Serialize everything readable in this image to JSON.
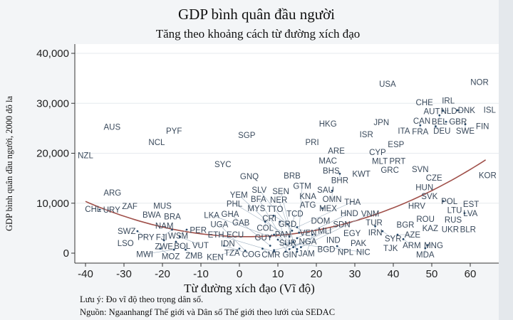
{
  "chart_data": {
    "type": "scatter",
    "title": "GDP bình quân đầu người",
    "subtitle": "Tăng theo khoảng cách từ đường xích đạo",
    "xlabel": "Từ đường xích đạo (Vĩ độ)",
    "ylabel": "GDP bình quân đầu người, 2000 đô la",
    "xlim": [
      -43,
      68
    ],
    "ylim": [
      -2000,
      42000
    ],
    "xticks": [
      -40,
      -30,
      -20,
      -10,
      0,
      10,
      20,
      30,
      40,
      50,
      60
    ],
    "yticks": [
      0,
      10000,
      20000,
      30000,
      40000
    ],
    "ytick_labels": [
      "0",
      "10,000",
      "20,000",
      "30,000",
      "40,000"
    ],
    "grid": true,
    "fit": {
      "type": "quadratic",
      "a": 4.0,
      "h": 2,
      "k": 3300,
      "xrange": [
        -40,
        64
      ],
      "color": "#a0504a"
    },
    "points": [
      {
        "label": "USA",
        "x": 38.5,
        "y": 33900
      },
      {
        "label": "NOR",
        "x": 62.4,
        "y": 34200
      },
      {
        "label": "CHE",
        "x": 48.1,
        "y": 30200
      },
      {
        "label": "IRL",
        "x": 54.3,
        "y": 30500
      },
      {
        "label": "AUT",
        "x": 48.9,
        "y": 29000
      },
      {
        "label": "NLD",
        "x": 52.9,
        "y": 28500
      },
      {
        "label": "DNK",
        "x": 56.7,
        "y": 28600
      },
      {
        "label": "ISL",
        "x": 65.6,
        "y": 29000
      },
      {
        "label": "CAN",
        "x": 47.4,
        "y": 27300
      },
      {
        "label": "BEL",
        "x": 52,
        "y": 27600
      },
      {
        "label": "GBR",
        "x": 53.7,
        "y": 26300
      },
      {
        "label": "FRA",
        "x": 47,
        "y": 25600
      },
      {
        "label": "DEU",
        "x": 51,
        "y": 25400
      },
      {
        "label": "SWE",
        "x": 58.7,
        "y": 25800
      },
      {
        "label": "FIN",
        "x": 62.4,
        "y": 25400
      },
      {
        "label": "ITA",
        "x": 43.3,
        "y": 24800
      },
      {
        "label": "JPN",
        "x": 36.9,
        "y": 26200
      },
      {
        "label": "ISR",
        "x": 33,
        "y": 23800
      },
      {
        "label": "HKG",
        "x": 23,
        "y": 25900
      },
      {
        "label": "PRI",
        "x": 18.9,
        "y": 22200
      },
      {
        "label": "ARE",
        "x": 25.2,
        "y": 20500
      },
      {
        "label": "MAC",
        "x": 23,
        "y": 18500
      },
      {
        "label": "BHS",
        "x": 23.3,
        "y": 16800
      },
      {
        "label": "BHR",
        "x": 26.1,
        "y": 15900
      },
      {
        "label": "KWT",
        "x": 30.9,
        "y": 15900
      },
      {
        "label": "ESP",
        "x": 40.7,
        "y": 21800
      },
      {
        "label": "CYP",
        "x": 35.9,
        "y": 20200
      },
      {
        "label": "MLT",
        "x": 36.5,
        "y": 18400
      },
      {
        "label": "PRT",
        "x": 41.1,
        "y": 18400
      },
      {
        "label": "GRC",
        "x": 39.1,
        "y": 17100
      },
      {
        "label": "SVN",
        "x": 47,
        "y": 16800
      },
      {
        "label": "CZE",
        "x": 50.6,
        "y": 15500
      },
      {
        "label": "KOR",
        "x": 65.6,
        "y": 16200
      },
      {
        "label": "HUN",
        "x": 48.1,
        "y": 13200
      },
      {
        "label": "SVK",
        "x": 49.4,
        "y": 11400
      },
      {
        "label": "HRV",
        "x": 46.1,
        "y": 9500
      },
      {
        "label": "POL",
        "x": 53,
        "y": 10400
      },
      {
        "label": "EST",
        "x": 60.2,
        "y": 9800
      },
      {
        "label": "LTU",
        "x": 56.7,
        "y": 8600
      },
      {
        "label": "LVA",
        "x": 58.5,
        "y": 8000
      },
      {
        "label": "RUS",
        "x": 55,
        "y": 7000
      },
      {
        "label": "BLR",
        "x": 59.4,
        "y": 4800
      },
      {
        "label": "UKR",
        "x": 54.8,
        "y": 4800
      },
      {
        "label": "KAZ",
        "x": 49.6,
        "y": 5000
      },
      {
        "label": "ROU",
        "x": 48.9,
        "y": 6500
      },
      {
        "label": "BGR",
        "x": 43.7,
        "y": 6000
      },
      {
        "label": "TUR",
        "x": 35,
        "y": 6100
      },
      {
        "label": "IRN",
        "x": 35.3,
        "y": 5400
      },
      {
        "label": "SYR",
        "x": 37.2,
        "y": 4400
      },
      {
        "label": "AZE",
        "x": 41.1,
        "y": 3700
      },
      {
        "label": "ARM",
        "x": 42.6,
        "y": 2800
      },
      {
        "label": "MNG",
        "x": 48.9,
        "y": 1600
      },
      {
        "label": "MDA",
        "x": 48.3,
        "y": 1000
      },
      {
        "label": "TJK",
        "x": 39.3,
        "y": 1000
      },
      {
        "label": "EGY",
        "x": 29.3,
        "y": 4000
      },
      {
        "label": "PAK",
        "x": 30.4,
        "y": 2300
      },
      {
        "label": "IND",
        "x": 24.4,
        "y": 2600
      },
      {
        "label": "BGD",
        "x": 21.5,
        "y": 1400
      },
      {
        "label": "NPL",
        "x": 25.4,
        "y": 1400
      },
      {
        "label": "SAU",
        "x": 22.4,
        "y": 12700
      },
      {
        "label": "OMN",
        "x": 24.1,
        "y": 12500
      },
      {
        "label": "KNA",
        "x": 17.8,
        "y": 11400
      },
      {
        "label": "ATG",
        "x": 17.8,
        "y": 10100
      },
      {
        "label": "MEX",
        "x": 21.5,
        "y": 9000
      },
      {
        "label": "MYS",
        "x": 4.4,
        "y": 9000
      },
      {
        "label": "TTO",
        "x": 8.5,
        "y": 8800
      },
      {
        "label": "CRI",
        "x": 7.8,
        "y": 7800
      },
      {
        "label": "GRD",
        "x": 8.9,
        "y": 7500
      },
      {
        "label": "DOM",
        "x": 21.1,
        "y": 6500
      },
      {
        "label": "GAB",
        "x": 0.4,
        "y": 6100
      },
      {
        "label": "COL",
        "x": 6.7,
        "y": 6300
      },
      {
        "label": "PAN",
        "x": 10.5,
        "y": 6300
      },
      {
        "label": "VEN",
        "x": 12.5,
        "y": 5800
      },
      {
        "label": "ECU",
        "x": -1.1,
        "y": 3700
      },
      {
        "label": "GUY",
        "x": 6.3,
        "y": 4000
      },
      {
        "label": "SUR",
        "x": 9,
        "y": 3700
      },
      {
        "label": "JAM",
        "x": 19,
        "y": 3700
      },
      {
        "label": "BRB",
        "x": 13.7,
        "y": 15500
      },
      {
        "label": "GNQ",
        "x": 2.6,
        "y": 15400
      },
      {
        "label": "SGP",
        "x": 1.9,
        "y": 23600
      },
      {
        "label": "SYC",
        "x": -4.3,
        "y": 17800
      },
      {
        "label": "AUS",
        "x": -33.1,
        "y": 25300
      },
      {
        "label": "PYF",
        "x": -17,
        "y": 24500
      },
      {
        "label": "NCL",
        "x": -21.5,
        "y": 22200
      },
      {
        "label": "NZL",
        "x": -40,
        "y": 19600
      },
      {
        "label": "ARG",
        "x": -33,
        "y": 12100
      },
      {
        "label": "CHL",
        "x": -38,
        "y": 8800
      },
      {
        "label": "URY",
        "x": -36.3,
        "y": 8700
      },
      {
        "label": "ZAF",
        "x": -28.5,
        "y": 9400
      },
      {
        "label": "MUS",
        "x": -20,
        "y": 9500
      },
      {
        "label": "BWA",
        "x": -22.8,
        "y": 7700
      },
      {
        "label": "BRA",
        "x": -17.4,
        "y": 7300
      },
      {
        "label": "NAM",
        "x": -20.6,
        "y": 6100
      },
      {
        "label": "SWZ",
        "x": -29.3,
        "y": 4400
      },
      {
        "label": "PRY",
        "x": -26.5,
        "y": 4400
      },
      {
        "label": "PER",
        "x": -10.7,
        "y": 4600
      },
      {
        "label": "WSM",
        "x": -13.7,
        "y": 4700
      },
      {
        "label": "FJI",
        "x": -17.5,
        "y": 4700
      },
      {
        "label": "LSO",
        "x": -29.6,
        "y": 2000
      },
      {
        "label": "ZWE",
        "x": -19.6,
        "y": 2600
      },
      {
        "label": "BOL",
        "x": -16.5,
        "y": 2300
      },
      {
        "label": "VUT",
        "x": -15.5,
        "y": 3300
      },
      {
        "label": "MOZ",
        "x": -20.6,
        "y": 900
      },
      {
        "label": "MWI",
        "x": -17,
        "y": 700
      },
      {
        "label": "ZMB",
        "x": -14,
        "y": 700
      },
      {
        "label": "IDN",
        "x": -3,
        "y": 2800
      },
      {
        "label": "TZA",
        "x": -3,
        "y": 700
      },
      {
        "label": "COG",
        "x": -4,
        "y": 1500
      },
      {
        "label": "KEN",
        "x": 0,
        "y": 900
      },
      {
        "label": "UGA",
        "x": 1.5,
        "y": 500
      },
      {
        "label": "CMR",
        "x": 6,
        "y": 900
      },
      {
        "label": "NGA",
        "x": 9,
        "y": 600
      },
      {
        "label": "GHA",
        "x": 8,
        "y": 1500
      },
      {
        "label": "ETH",
        "x": 9,
        "y": 300
      },
      {
        "label": "SDN",
        "x": 13,
        "y": 800
      },
      {
        "label": "TCD",
        "x": 12,
        "y": 300
      },
      {
        "label": "NER",
        "x": 15,
        "y": 300
      },
      {
        "label": "MLI",
        "x": 14,
        "y": 1200
      },
      {
        "label": "BFA",
        "x": 12,
        "y": 1800
      },
      {
        "label": "SEN",
        "x": 14,
        "y": 2300
      },
      {
        "label": "GIN",
        "x": 10,
        "y": 2700
      },
      {
        "label": "HND",
        "x": 15,
        "y": 3000
      },
      {
        "label": "NIC",
        "x": 13,
        "y": 2000
      },
      {
        "label": "GTM",
        "x": 15.5,
        "y": 4100
      },
      {
        "label": "SLV",
        "x": 13.7,
        "y": 4500
      },
      {
        "label": "THA",
        "x": 15,
        "y": 5200
      },
      {
        "label": "PHL",
        "x": 13,
        "y": 3300
      },
      {
        "label": "VNM",
        "x": 16,
        "y": 1200
      },
      {
        "label": "LKA",
        "x": 8,
        "y": 3300
      },
      {
        "label": "YEM",
        "x": 15,
        "y": 800
      }
    ]
  },
  "notes": {
    "note": "Lưu ý: Đo vĩ độ theo trọng dân số.",
    "source": "Nguồn: Ngaanhangf Thế giới và Dân số Thế giới theo lưới của SEDAC"
  }
}
